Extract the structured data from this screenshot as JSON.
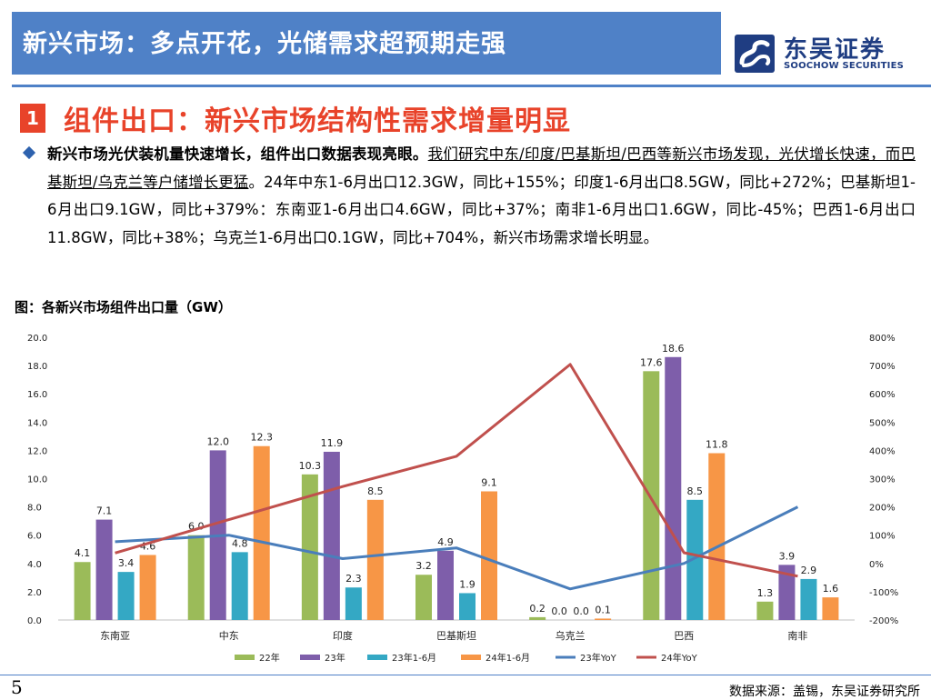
{
  "header": {
    "title": "新兴市场：多点开花，光储需求超预期走强",
    "logo_cn": "东吴证券",
    "logo_en": "SOOCHOW SECURITIES"
  },
  "section": {
    "number": "1",
    "title": "组件出口：新兴市场结构性需求增量明显"
  },
  "paragraph": {
    "bold": "新兴市场光伏装机量快速增长，组件出口数据表现亮眼。",
    "underline": "我们研究中东/印度/巴基斯坦/巴西等新兴市场发现，光伏增长快速，而巴基斯坦/乌克兰等户储增长更猛",
    "rest": "。24年中东1-6月出口12.3GW，同比+155%；印度1-6月出口8.5GW，同比+272%；巴基斯坦1-6月出口9.1GW，同比+379%：东南亚1-6月出口4.6GW，同比+37%；南非1-6月出口1.6GW，同比-45%；巴西1-6月出口11.8GW，同比+38%；乌克兰1-6月出口0.1GW，同比+704%，新兴市场需求增长明显。"
  },
  "figure": {
    "title": "图：各新兴市场组件出口量（GW）"
  },
  "footer": {
    "page": "5",
    "source": "数据来源：盖锡，东吴证券研究所"
  },
  "chart_data": {
    "type": "bar",
    "categories": [
      "东南亚",
      "中东",
      "印度",
      "巴基斯坦",
      "乌克兰",
      "巴西",
      "南非"
    ],
    "series": [
      {
        "name": "22年",
        "color": "#9bbb59",
        "values": [
          4.1,
          6.0,
          10.3,
          3.2,
          0.2,
          17.6,
          1.3
        ],
        "labels": [
          "4.1",
          "6.0",
          "10.3",
          "3.2",
          "0.2",
          "17.6",
          "1.3"
        ]
      },
      {
        "name": "23年",
        "color": "#7e5eaa",
        "values": [
          7.1,
          12.0,
          11.9,
          4.9,
          0.0,
          18.6,
          3.9
        ],
        "labels": [
          "7.1",
          "12.0",
          "11.9",
          "4.9",
          "0.0",
          "18.6",
          "3.9"
        ]
      },
      {
        "name": "23年1-6月",
        "color": "#34a8c4",
        "values": [
          3.4,
          4.8,
          2.3,
          1.9,
          0.0,
          8.5,
          2.9
        ],
        "labels": [
          "3.4",
          "4.8",
          "2.3",
          "1.9",
          "0.0",
          "8.5",
          "2.9"
        ]
      },
      {
        "name": "24年1-6月",
        "color": "#f79646",
        "values": [
          4.6,
          12.3,
          8.5,
          9.1,
          0.1,
          11.8,
          1.6
        ],
        "labels": [
          "4.6",
          "12.3",
          "8.5",
          "9.1",
          "0.1",
          "11.8",
          "1.6"
        ]
      }
    ],
    "lines": [
      {
        "name": "23年YoY",
        "color": "#4a7ebb",
        "values": [
          77,
          100,
          17,
          55,
          -90,
          0,
          200
        ]
      },
      {
        "name": "24年YoY",
        "color": "#c0504d",
        "values": [
          37,
          155,
          272,
          379,
          704,
          38,
          -45
        ]
      }
    ],
    "yleft": {
      "min": 0,
      "max": 20,
      "step": 2,
      "ticks": [
        "0.0",
        "2.0",
        "4.0",
        "6.0",
        "8.0",
        "10.0",
        "12.0",
        "14.0",
        "16.0",
        "18.0",
        "20.0"
      ]
    },
    "yright": {
      "min": -200,
      "max": 800,
      "step": 100,
      "ticks": [
        "-200%",
        "-100%",
        "0%",
        "100%",
        "200%",
        "300%",
        "400%",
        "500%",
        "600%",
        "700%",
        "800%"
      ]
    },
    "legend_position": "bottom"
  }
}
